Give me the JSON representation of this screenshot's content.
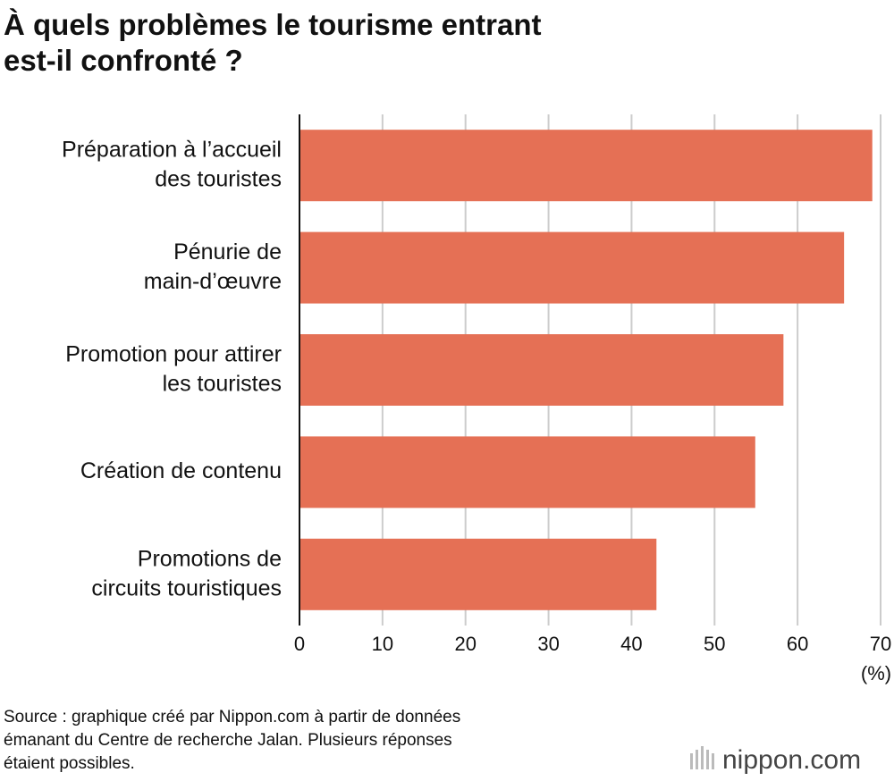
{
  "chart_data": {
    "type": "bar",
    "orientation": "horizontal",
    "title": "À quels problèmes le tourisme entrant\nest-il confronté ?",
    "categories": [
      "Préparation à l’accueil\ndes touristes",
      "Pénurie de\nmain-d’œuvre",
      "Promotion pour attirer\nles touristes",
      "Création de contenu",
      "Promotions de\ncircuits touristiques"
    ],
    "values": [
      69.0,
      65.6,
      58.3,
      54.9,
      43.0
    ],
    "color": "#e57055",
    "xlim": [
      0,
      70
    ],
    "xticks": [
      0,
      10,
      20,
      30,
      40,
      50,
      60,
      70
    ],
    "x_unit": "(%)",
    "grid": true,
    "source": "Source : graphique créé par Nippon.com à partir de données\némanant du Centre de recherche Jalan. Plusieurs réponses\nétaient possibles.",
    "logo": "nippon.com"
  }
}
